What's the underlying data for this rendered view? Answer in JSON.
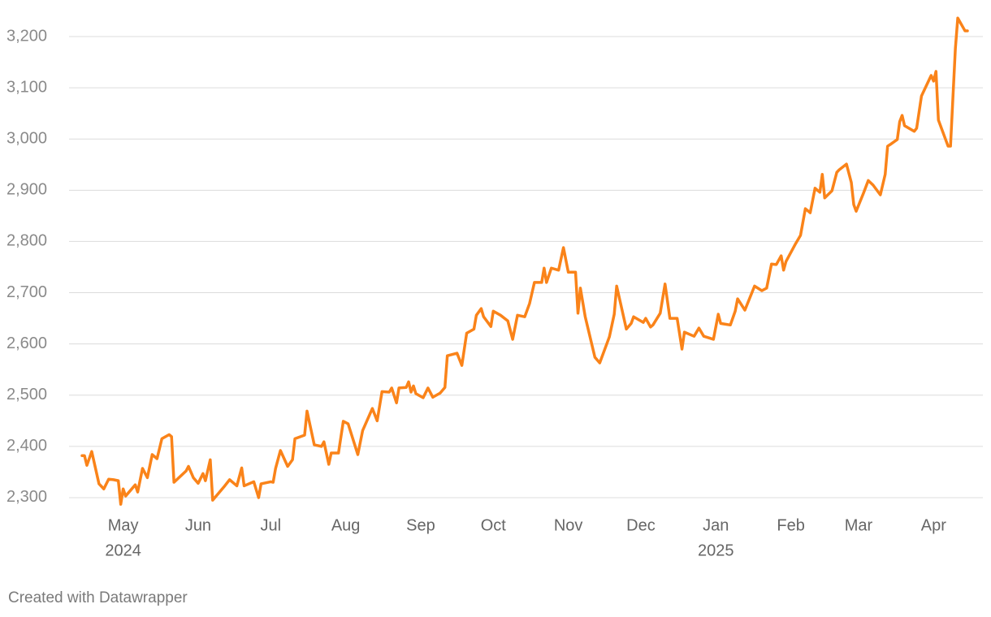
{
  "chart_data": {
    "type": "line",
    "color": "#fa8319",
    "grid": true,
    "x": [
      "2024-04-14",
      "2024-04-15",
      "2024-04-16",
      "2024-04-18",
      "2024-04-21",
      "2024-04-23",
      "2024-04-25",
      "2024-04-27",
      "2024-04-29",
      "2024-04-30",
      "2024-05-01",
      "2024-05-02",
      "2024-05-06",
      "2024-05-07",
      "2024-05-09",
      "2024-05-11",
      "2024-05-13",
      "2024-05-15",
      "2024-05-17",
      "2024-05-20",
      "2024-05-21",
      "2024-05-22",
      "2024-05-27",
      "2024-05-28",
      "2024-05-30",
      "2024-06-01",
      "2024-06-03",
      "2024-06-04",
      "2024-06-06",
      "2024-06-07",
      "2024-06-12",
      "2024-06-14",
      "2024-06-17",
      "2024-06-19",
      "2024-06-20",
      "2024-06-24",
      "2024-06-26",
      "2024-06-27",
      "2024-07-01",
      "2024-07-02",
      "2024-07-03",
      "2024-07-05",
      "2024-07-08",
      "2024-07-10",
      "2024-07-11",
      "2024-07-15",
      "2024-07-16",
      "2024-07-17",
      "2024-07-19",
      "2024-07-22",
      "2024-07-23",
      "2024-07-25",
      "2024-07-26",
      "2024-07-29",
      "2024-07-31",
      "2024-08-02",
      "2024-08-06",
      "2024-08-08",
      "2024-08-12",
      "2024-08-14",
      "2024-08-16",
      "2024-08-19",
      "2024-08-20",
      "2024-08-22",
      "2024-08-23",
      "2024-08-26",
      "2024-08-27",
      "2024-08-28",
      "2024-08-29",
      "2024-08-30",
      "2024-09-02",
      "2024-09-04",
      "2024-09-06",
      "2024-09-09",
      "2024-09-11",
      "2024-09-12",
      "2024-09-16",
      "2024-09-18",
      "2024-09-20",
      "2024-09-23",
      "2024-09-24",
      "2024-09-26",
      "2024-09-27",
      "2024-09-30",
      "2024-10-01",
      "2024-10-04",
      "2024-10-07",
      "2024-10-09",
      "2024-10-11",
      "2024-10-14",
      "2024-10-16",
      "2024-10-18",
      "2024-10-21",
      "2024-10-22",
      "2024-10-23",
      "2024-10-25",
      "2024-10-28",
      "2024-10-30",
      "2024-11-01",
      "2024-11-04",
      "2024-11-05",
      "2024-11-06",
      "2024-11-08",
      "2024-11-12",
      "2024-11-14",
      "2024-11-18",
      "2024-11-20",
      "2024-11-21",
      "2024-11-25",
      "2024-11-27",
      "2024-11-28",
      "2024-12-02",
      "2024-12-03",
      "2024-12-05",
      "2024-12-06",
      "2024-12-09",
      "2024-12-11",
      "2024-12-13",
      "2024-12-16",
      "2024-12-18",
      "2024-12-19",
      "2024-12-23",
      "2024-12-25",
      "2024-12-27",
      "2024-12-31",
      "2025-01-02",
      "2025-01-03",
      "2025-01-07",
      "2025-01-09",
      "2025-01-10",
      "2025-01-13",
      "2025-01-17",
      "2025-01-20",
      "2025-01-22",
      "2025-01-24",
      "2025-01-26",
      "2025-01-28",
      "2025-01-29",
      "2025-01-30",
      "2025-02-03",
      "2025-02-05",
      "2025-02-07",
      "2025-02-09",
      "2025-02-11",
      "2025-02-13",
      "2025-02-14",
      "2025-02-15",
      "2025-02-18",
      "2025-02-20",
      "2025-02-21",
      "2025-02-24",
      "2025-02-26",
      "2025-02-27",
      "2025-02-28",
      "2025-03-03",
      "2025-03-05",
      "2025-03-07",
      "2025-03-10",
      "2025-03-12",
      "2025-03-13",
      "2025-03-14",
      "2025-03-17",
      "2025-03-18",
      "2025-03-19",
      "2025-03-20",
      "2025-03-24",
      "2025-03-25",
      "2025-03-27",
      "2025-03-31",
      "2025-04-01",
      "2025-04-02",
      "2025-04-03",
      "2025-04-07",
      "2025-04-08",
      "2025-04-10",
      "2025-04-11",
      "2025-04-14",
      "2025-04-15"
    ],
    "values": [
      2382,
      2382,
      2363,
      2390,
      2327,
      2317,
      2336,
      2335,
      2333,
      2287,
      2317,
      2303,
      2325,
      2311,
      2357,
      2339,
      2384,
      2376,
      2415,
      2423,
      2419,
      2330,
      2352,
      2361,
      2339,
      2328,
      2347,
      2333,
      2374,
      2295,
      2323,
      2335,
      2323,
      2358,
      2323,
      2331,
      2300,
      2327,
      2331,
      2330,
      2357,
      2392,
      2361,
      2374,
      2415,
      2422,
      2469,
      2447,
      2403,
      2400,
      2409,
      2365,
      2387,
      2387,
      2449,
      2444,
      2384,
      2431,
      2474,
      2450,
      2507,
      2506,
      2514,
      2485,
      2514,
      2515,
      2526,
      2506,
      2518,
      2503,
      2495,
      2514,
      2496,
      2504,
      2515,
      2577,
      2582,
      2558,
      2621,
      2629,
      2656,
      2669,
      2653,
      2634,
      2664,
      2656,
      2645,
      2609,
      2656,
      2653,
      2679,
      2720,
      2720,
      2748,
      2720,
      2748,
      2744,
      2788,
      2740,
      2740,
      2660,
      2709,
      2653,
      2574,
      2563,
      2614,
      2658,
      2713,
      2629,
      2640,
      2653,
      2642,
      2650,
      2633,
      2637,
      2660,
      2717,
      2650,
      2650,
      2590,
      2623,
      2615,
      2631,
      2615,
      2609,
      2658,
      2640,
      2637,
      2664,
      2688,
      2666,
      2713,
      2704,
      2709,
      2756,
      2755,
      2772,
      2744,
      2761,
      2796,
      2812,
      2864,
      2856,
      2904,
      2896,
      2931,
      2885,
      2899,
      2935,
      2940,
      2951,
      2915,
      2872,
      2859,
      2894,
      2919,
      2910,
      2891,
      2931,
      2986,
      2989,
      2999,
      3034,
      3046,
      3026,
      3015,
      3021,
      3084,
      3124,
      3113,
      3132,
      3037,
      2986,
      2986,
      3176,
      3236,
      3211,
      3211
    ],
    "xlim": [
      "2024-04-14",
      "2025-04-15"
    ],
    "xticks": [
      {
        "value": "2024-05-01",
        "label": "May",
        "year": "2024"
      },
      {
        "value": "2024-06-01",
        "label": "Jun"
      },
      {
        "value": "2024-07-01",
        "label": "Jul"
      },
      {
        "value": "2024-08-01",
        "label": "Aug"
      },
      {
        "value": "2024-09-01",
        "label": "Sep"
      },
      {
        "value": "2024-10-01",
        "label": "Oct"
      },
      {
        "value": "2024-11-01",
        "label": "Nov"
      },
      {
        "value": "2024-12-01",
        "label": "Dec"
      },
      {
        "value": "2025-01-01",
        "label": "Jan",
        "year": "2025"
      },
      {
        "value": "2025-02-01",
        "label": "Feb"
      },
      {
        "value": "2025-03-01",
        "label": "Mar"
      },
      {
        "value": "2025-04-01",
        "label": "Apr"
      }
    ],
    "ylim": [
      2270,
      3250
    ],
    "yticks": [
      {
        "value": 2300,
        "label": "2,300"
      },
      {
        "value": 2400,
        "label": "2,400"
      },
      {
        "value": 2500,
        "label": "2,500"
      },
      {
        "value": 2600,
        "label": "2,600"
      },
      {
        "value": 2700,
        "label": "2,700"
      },
      {
        "value": 2800,
        "label": "2,800"
      },
      {
        "value": 2900,
        "label": "2,900"
      },
      {
        "value": 3000,
        "label": "3,000"
      },
      {
        "value": 3100,
        "label": "3,100"
      },
      {
        "value": 3200,
        "label": "3,200"
      }
    ],
    "footer": "Created with Datawrapper"
  }
}
